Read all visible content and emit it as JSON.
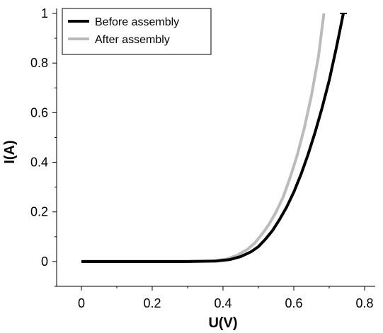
{
  "chart_data": {
    "type": "line",
    "title": "",
    "xlabel": "U(V)",
    "ylabel": "I(A)",
    "xlim": [
      -0.07,
      0.83
    ],
    "ylim": [
      -0.1,
      1.02
    ],
    "x_ticks": [
      0,
      0.2,
      0.4,
      0.6,
      0.8
    ],
    "x_tick_labels": [
      "0",
      "0.2",
      "0.4",
      "0.6",
      "0.8"
    ],
    "y_ticks": [
      0,
      0.2,
      0.4,
      0.6,
      0.8,
      1
    ],
    "y_tick_labels": [
      "0",
      "0.2",
      "0.4",
      "0.6",
      "0.8",
      "1"
    ],
    "grid": false,
    "legend_position": "top-left",
    "series": [
      {
        "name": "Before assembly",
        "color": "#000000",
        "x": [
          0,
          0.1,
          0.2,
          0.3,
          0.38,
          0.42,
          0.45,
          0.48,
          0.5,
          0.52,
          0.54,
          0.56,
          0.58,
          0.6,
          0.62,
          0.64,
          0.66,
          0.68,
          0.7,
          0.72,
          0.74
        ],
        "y": [
          0,
          0,
          0,
          0,
          0.002,
          0.008,
          0.02,
          0.04,
          0.06,
          0.09,
          0.125,
          0.17,
          0.22,
          0.28,
          0.35,
          0.43,
          0.52,
          0.62,
          0.73,
          0.86,
          1.0
        ]
      },
      {
        "name": "After assembly",
        "color": "#bbbbbb",
        "x": [
          0,
          0.1,
          0.2,
          0.3,
          0.37,
          0.41,
          0.44,
          0.47,
          0.49,
          0.51,
          0.53,
          0.55,
          0.57,
          0.59,
          0.61,
          0.63,
          0.65,
          0.67,
          0.685
        ],
        "y": [
          0,
          0,
          0,
          0,
          0.002,
          0.01,
          0.025,
          0.05,
          0.075,
          0.11,
          0.15,
          0.2,
          0.26,
          0.34,
          0.43,
          0.54,
          0.67,
          0.83,
          1.0
        ]
      }
    ]
  }
}
